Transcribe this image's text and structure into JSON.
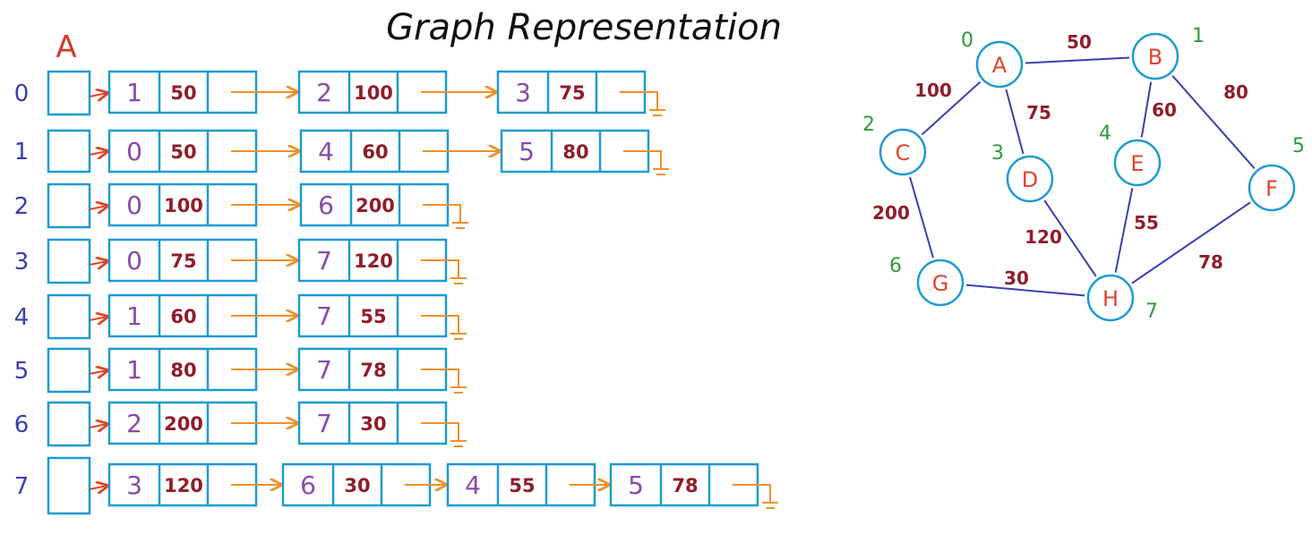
{
  "title": "Graph Representation",
  "array_label": "A",
  "colors": {
    "box": "#1f9bd1",
    "title": "#111111",
    "array_label": "#d23a2a",
    "index": "#3b3fb0",
    "vertex_num": "#8a4aa8",
    "weight": "#8e1e2a",
    "arrow_red": "#e0442c",
    "arrow_orange": "#f0902a",
    "null": "#f0902a",
    "node_text": "#e0442c",
    "node_number": "#2f9a3a",
    "edge": "#3b3fb0",
    "edge_weight": "#8e1e2a"
  },
  "adjacency_list": [
    {
      "index": "0",
      "nodes": [
        {
          "v": "1",
          "w": "50"
        },
        {
          "v": "2",
          "w": "100"
        },
        {
          "v": "3",
          "w": "75"
        }
      ]
    },
    {
      "index": "1",
      "nodes": [
        {
          "v": "0",
          "w": "50"
        },
        {
          "v": "4",
          "w": "60"
        },
        {
          "v": "5",
          "w": "80"
        }
      ]
    },
    {
      "index": "2",
      "nodes": [
        {
          "v": "0",
          "w": "100"
        },
        {
          "v": "6",
          "w": "200"
        }
      ]
    },
    {
      "index": "3",
      "nodes": [
        {
          "v": "0",
          "w": "75"
        },
        {
          "v": "7",
          "w": "120"
        }
      ]
    },
    {
      "index": "4",
      "nodes": [
        {
          "v": "1",
          "w": "60"
        },
        {
          "v": "7",
          "w": "55"
        }
      ]
    },
    {
      "index": "5",
      "nodes": [
        {
          "v": "1",
          "w": "80"
        },
        {
          "v": "7",
          "w": "78"
        }
      ]
    },
    {
      "index": "6",
      "nodes": [
        {
          "v": "2",
          "w": "200"
        },
        {
          "v": "7",
          "w": "30"
        }
      ]
    },
    {
      "index": "7",
      "nodes": [
        {
          "v": "3",
          "w": "120"
        },
        {
          "v": "6",
          "w": "30"
        },
        {
          "v": "4",
          "w": "55"
        },
        {
          "v": "5",
          "w": "78"
        }
      ]
    }
  ],
  "graph": {
    "nodes": [
      {
        "id": "A",
        "number": "0"
      },
      {
        "id": "B",
        "number": "1"
      },
      {
        "id": "C",
        "number": "2"
      },
      {
        "id": "D",
        "number": "3"
      },
      {
        "id": "E",
        "number": "4"
      },
      {
        "id": "F",
        "number": "5"
      },
      {
        "id": "G",
        "number": "6"
      },
      {
        "id": "H",
        "number": "7"
      }
    ],
    "edges": [
      {
        "from": "A",
        "to": "B",
        "weight": "50"
      },
      {
        "from": "A",
        "to": "C",
        "weight": "100"
      },
      {
        "from": "A",
        "to": "D",
        "weight": "75"
      },
      {
        "from": "B",
        "to": "E",
        "weight": "60"
      },
      {
        "from": "B",
        "to": "F",
        "weight": "80"
      },
      {
        "from": "C",
        "to": "G",
        "weight": "200"
      },
      {
        "from": "D",
        "to": "H",
        "weight": "120"
      },
      {
        "from": "E",
        "to": "H",
        "weight": "55"
      },
      {
        "from": "F",
        "to": "H",
        "weight": "78"
      },
      {
        "from": "G",
        "to": "H",
        "weight": "30"
      }
    ]
  }
}
